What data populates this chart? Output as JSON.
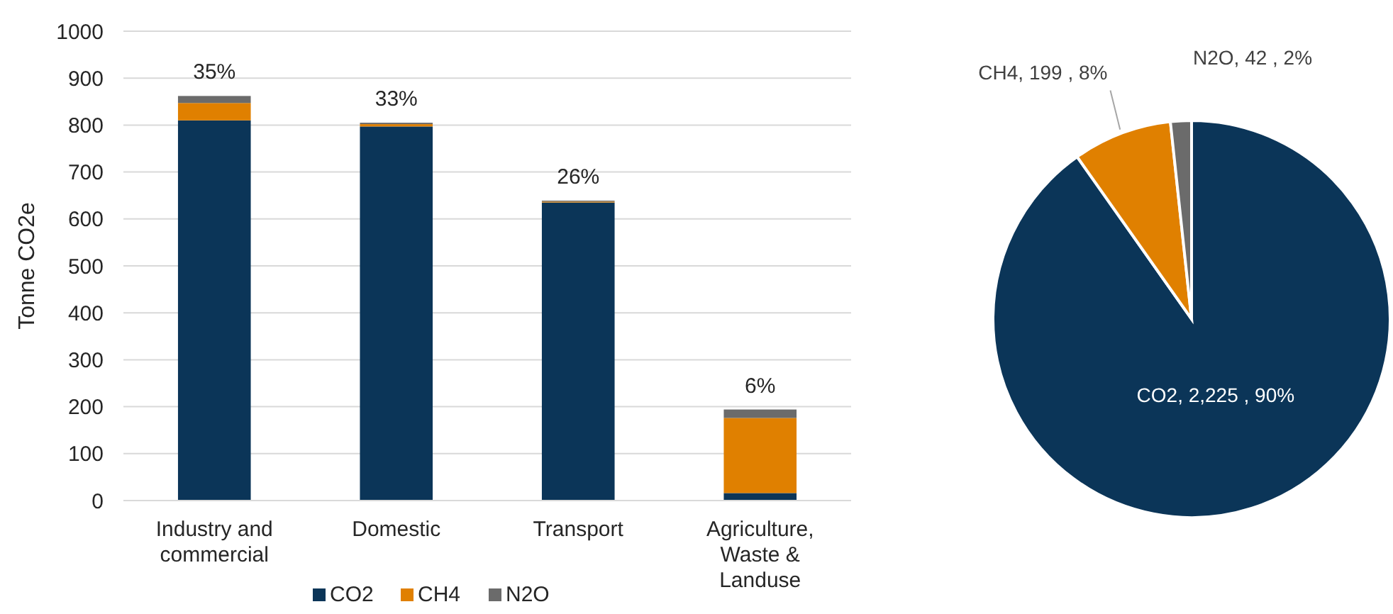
{
  "chart_data": [
    {
      "type": "bar",
      "stacked": true,
      "ylabel": "Tonne CO2e",
      "categories": [
        "Industry and commercial",
        "Domestic",
        "Transport",
        "Agriculture, Waste & Landuse"
      ],
      "series": [
        {
          "name": "CO2",
          "color": "#0b3558",
          "values": [
            810,
            797,
            635,
            16
          ]
        },
        {
          "name": "CH4",
          "color": "#e08000",
          "values": [
            37,
            5,
            2,
            160
          ]
        },
        {
          "name": "N2O",
          "color": "#6b6b6b",
          "values": [
            15,
            3,
            2,
            18
          ]
        }
      ],
      "annotations": [
        {
          "text": "35%",
          "x": "Industry and commercial",
          "y": 862
        },
        {
          "text": "33%",
          "x": "Domestic",
          "y": 805
        },
        {
          "text": "26%",
          "x": "Transport",
          "y": 639
        },
        {
          "text": "6%",
          "x": "Agriculture, Waste & Landuse",
          "y": 194
        }
      ],
      "ylim": [
        0,
        1000
      ],
      "yticks": [
        0,
        100,
        200,
        300,
        400,
        500,
        600,
        700,
        800,
        900,
        1000
      ],
      "grid": "y",
      "legend": "bottom"
    },
    {
      "type": "pie",
      "categories": [
        "CO2",
        "CH4",
        "N2O"
      ],
      "values": [
        2225,
        199,
        42
      ],
      "colors": [
        "#0b3558",
        "#e08000",
        "#6b6b6b"
      ],
      "value_labels": [
        "2,225 , 90%",
        "199 , 8%",
        "42 , 2%"
      ]
    }
  ]
}
